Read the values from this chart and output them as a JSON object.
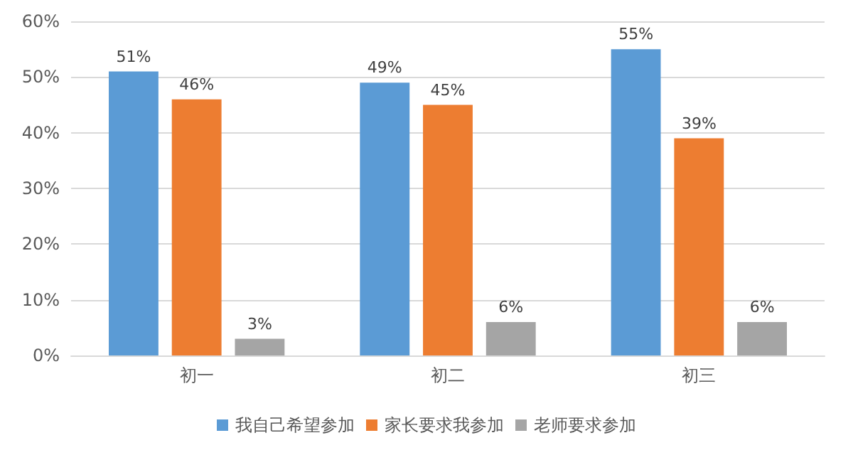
{
  "chart_data": {
    "type": "bar",
    "categories": [
      "初一",
      "初二",
      "初三"
    ],
    "series": [
      {
        "name": "我自己希望参加",
        "color": "#5b9bd5",
        "values": [
          51,
          49,
          55
        ]
      },
      {
        "name": "家长要求我参加",
        "color": "#ed7d31",
        "values": [
          46,
          45,
          39
        ]
      },
      {
        "name": "老师要求参加",
        "color": "#a5a5a5",
        "values": [
          3,
          6,
          6
        ]
      }
    ],
    "ylim": [
      0,
      60
    ],
    "yticks": [
      {
        "value": 0,
        "label": "0%"
      },
      {
        "value": 10,
        "label": "10%"
      },
      {
        "value": 20,
        "label": "20%"
      },
      {
        "value": 30,
        "label": "30%"
      },
      {
        "value": 40,
        "label": "40%"
      },
      {
        "value": 50,
        "label": "50%"
      },
      {
        "value": 60,
        "label": "60%"
      }
    ],
    "value_labels": [
      [
        "51%",
        "49%",
        "55%"
      ],
      [
        "46%",
        "45%",
        "39%"
      ],
      [
        "3%",
        "6%",
        "6%"
      ]
    ],
    "grid": "y",
    "legend": "bottom"
  }
}
